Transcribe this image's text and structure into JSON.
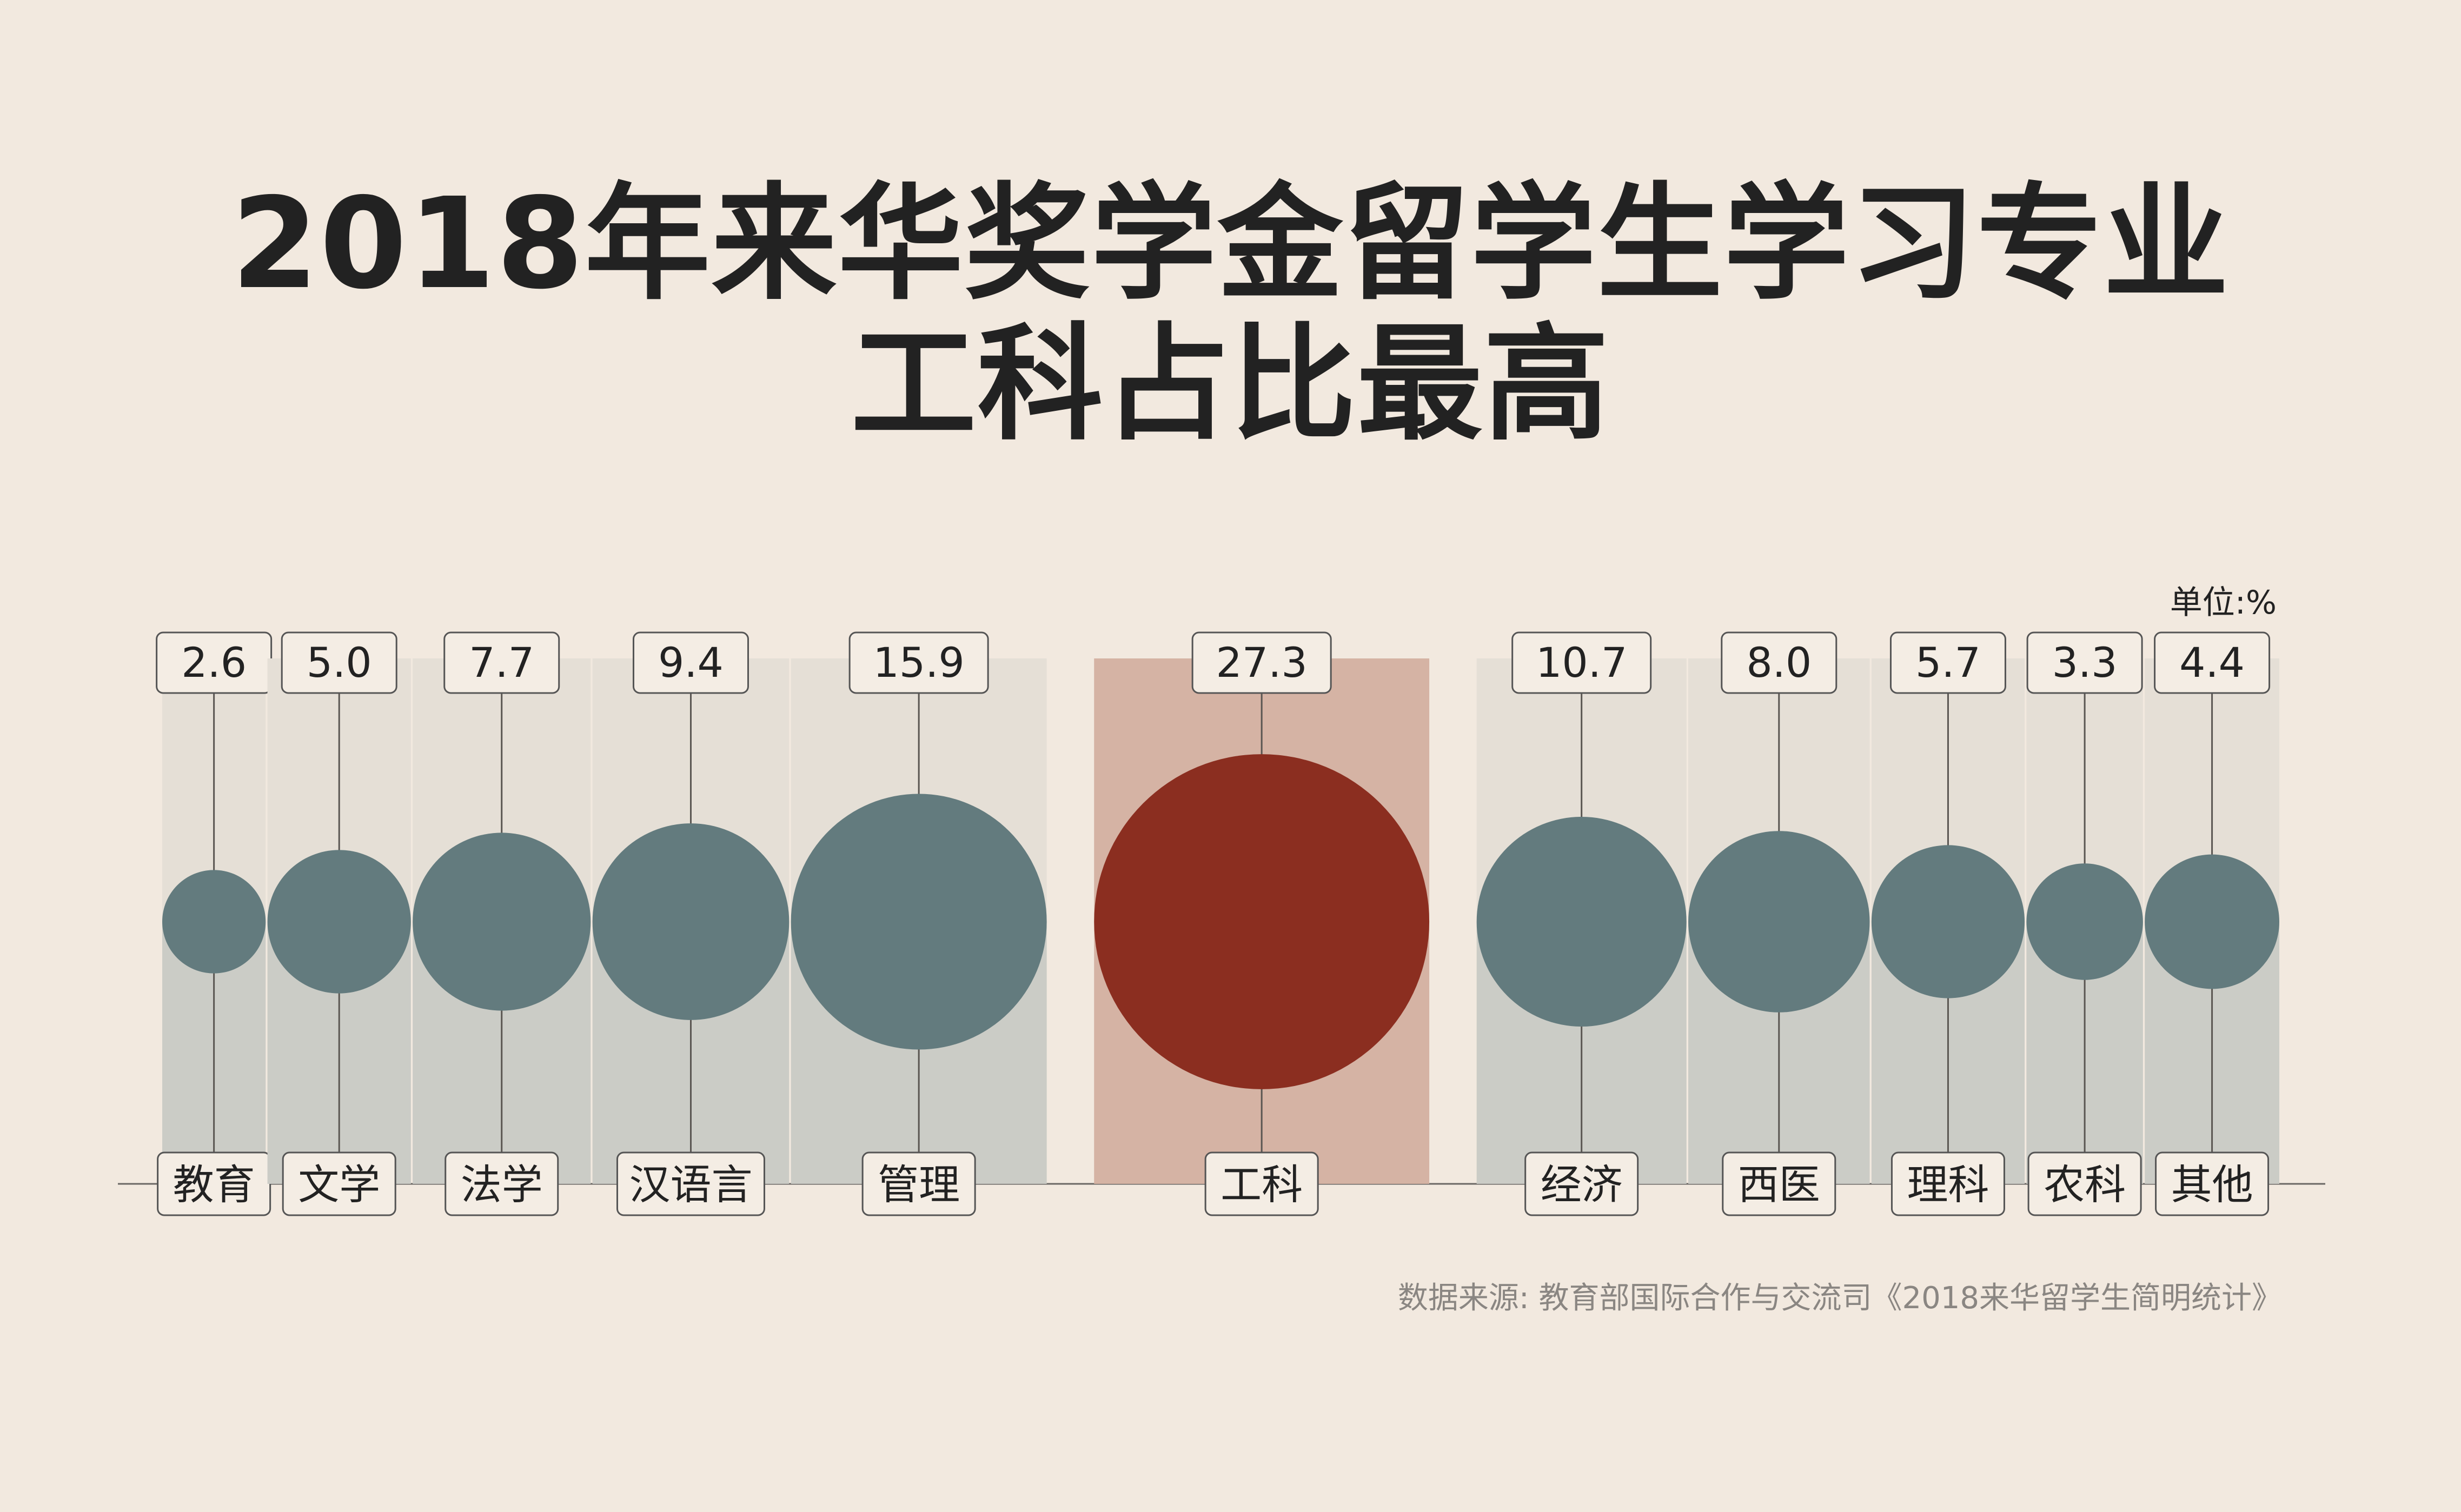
{
  "title": [
    "2018年来华奖学金留学生学习专业",
    "工科占比最高"
  ],
  "unit": "单位:%",
  "source": "数据来源: 教育部国际合作与交流司《2018来华留学生简明统计》",
  "colors": {
    "background": "#f2e9df",
    "bubble": "#637b7e",
    "highlight": "#8b2e20",
    "column_top": "#e5dfd6",
    "column_bottom": "#cbccc6",
    "highlight_column": "#d5b3a4"
  },
  "chart_data": {
    "type": "bubble",
    "title": "2018年来华奖学金留学生学习专业 工科占比最高",
    "unit": "%",
    "categories": [
      "教育",
      "文学",
      "法学",
      "汉语言",
      "管理",
      "工科",
      "经济",
      "西医",
      "理科",
      "农科",
      "其他"
    ],
    "values": [
      2.6,
      5.0,
      7.7,
      9.4,
      15.9,
      27.3,
      10.7,
      8.0,
      5.7,
      3.3,
      4.4
    ],
    "value_labels": [
      "2.6",
      "5.0",
      "7.7",
      "9.4",
      "15.9",
      "27.3",
      "10.7",
      "8.0",
      "5.7",
      "3.3",
      "4.4"
    ],
    "highlight": "工科"
  }
}
